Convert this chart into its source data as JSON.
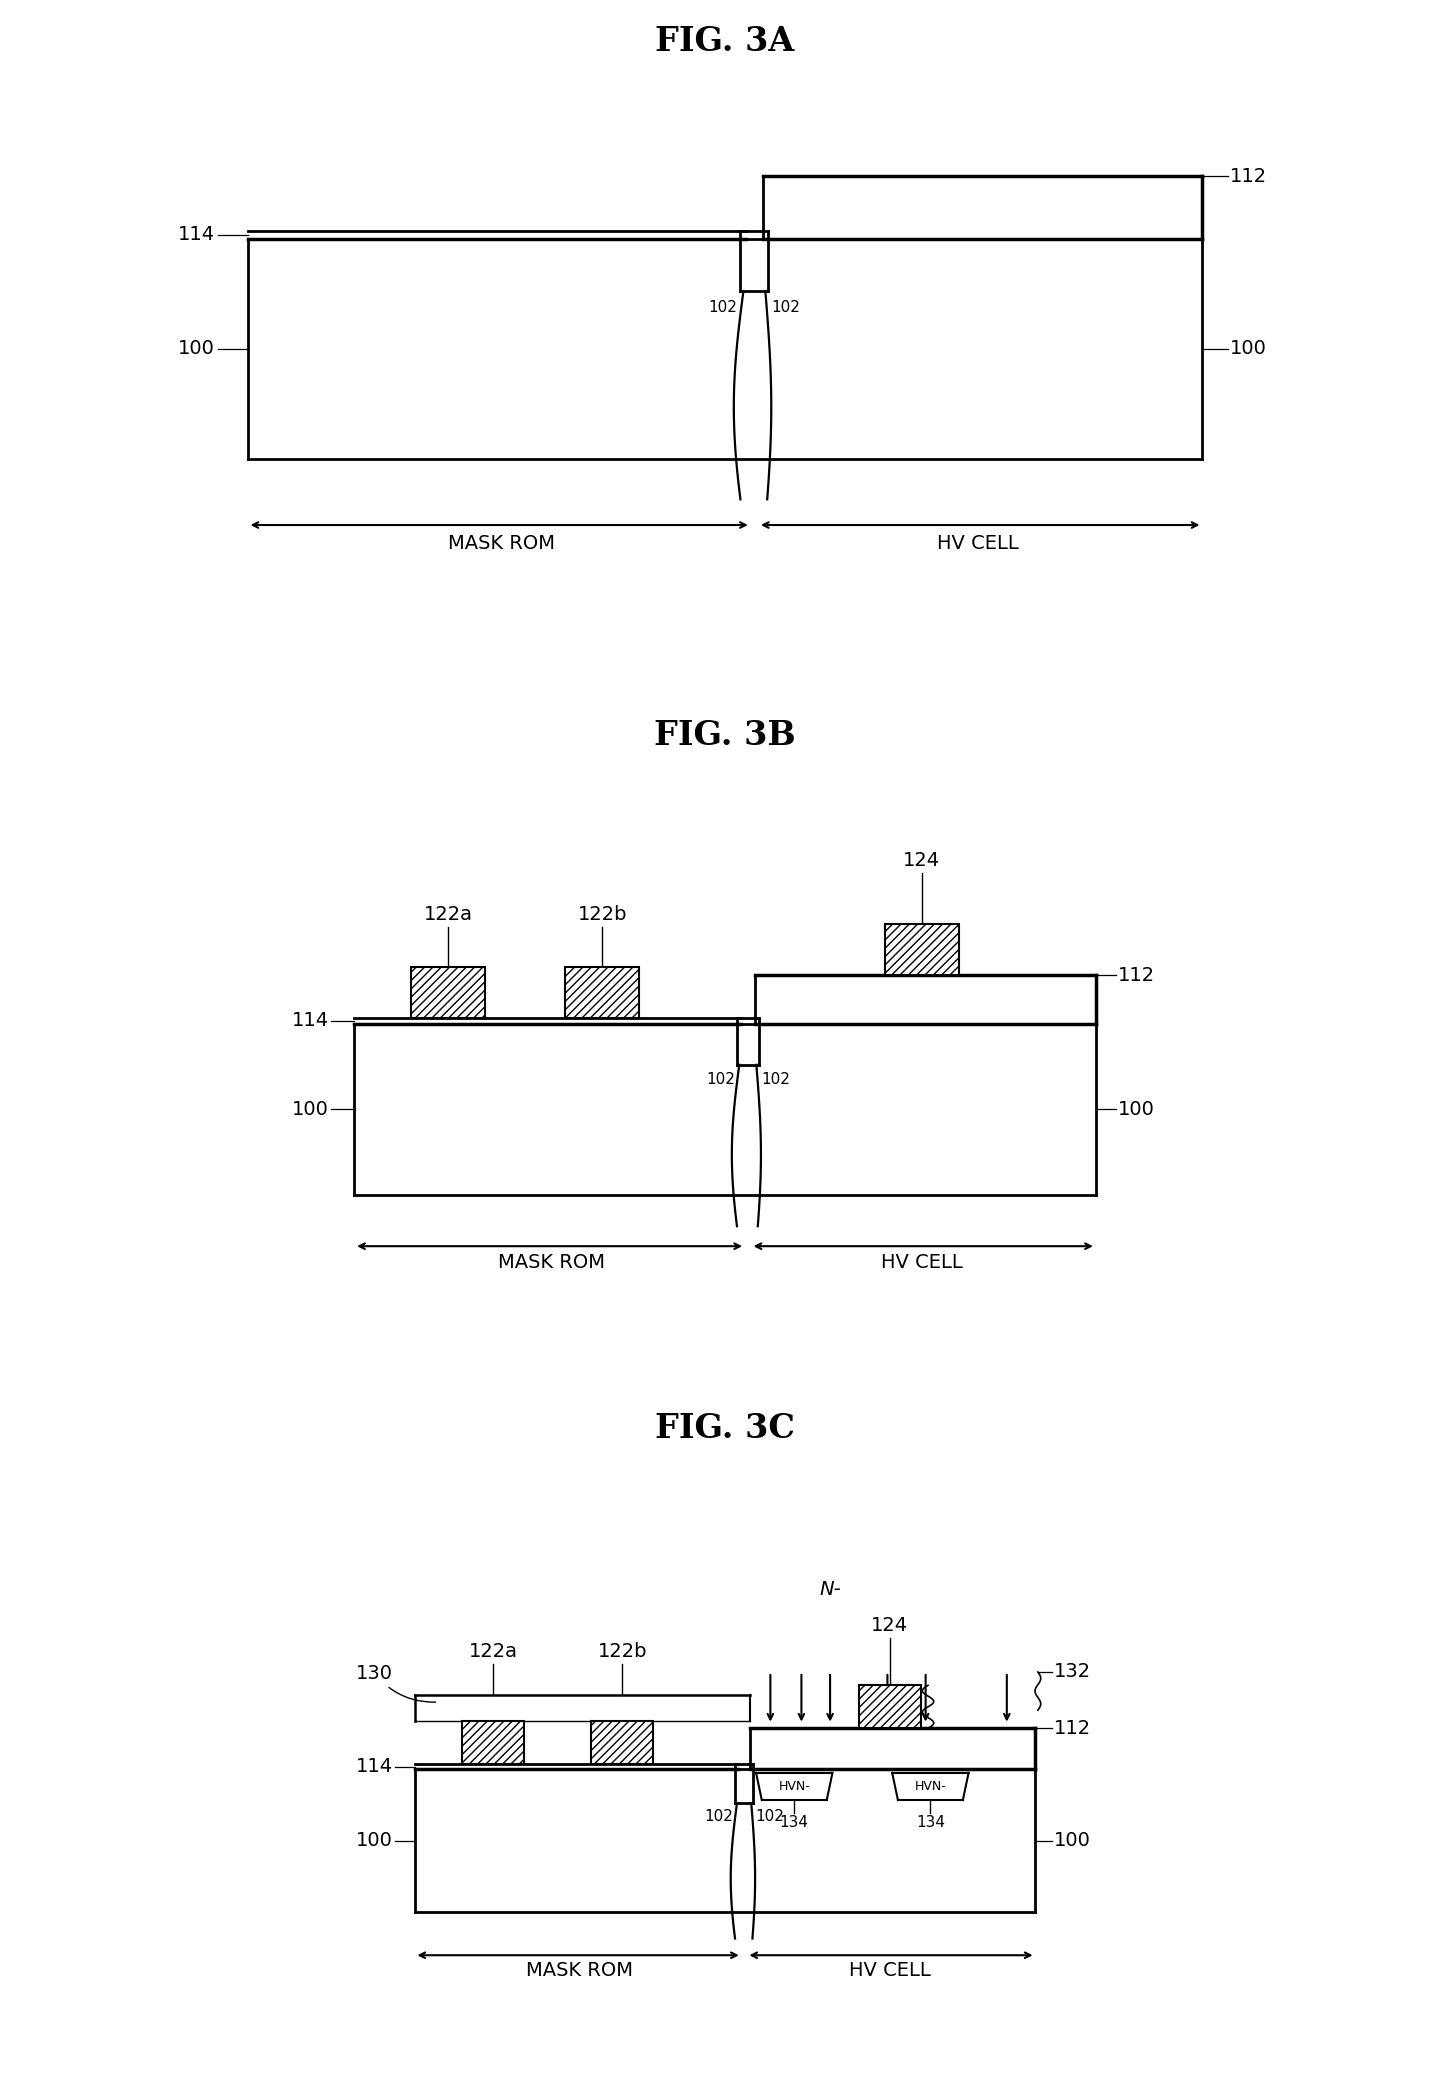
{
  "bg_color": "#ffffff",
  "fig_title_3A": "FIG. 3A",
  "fig_title_3B": "FIG. 3B",
  "fig_title_3C": "FIG. 3C",
  "label_fontsize": 14,
  "title_fontsize": 24,
  "small_fontsize": 11
}
